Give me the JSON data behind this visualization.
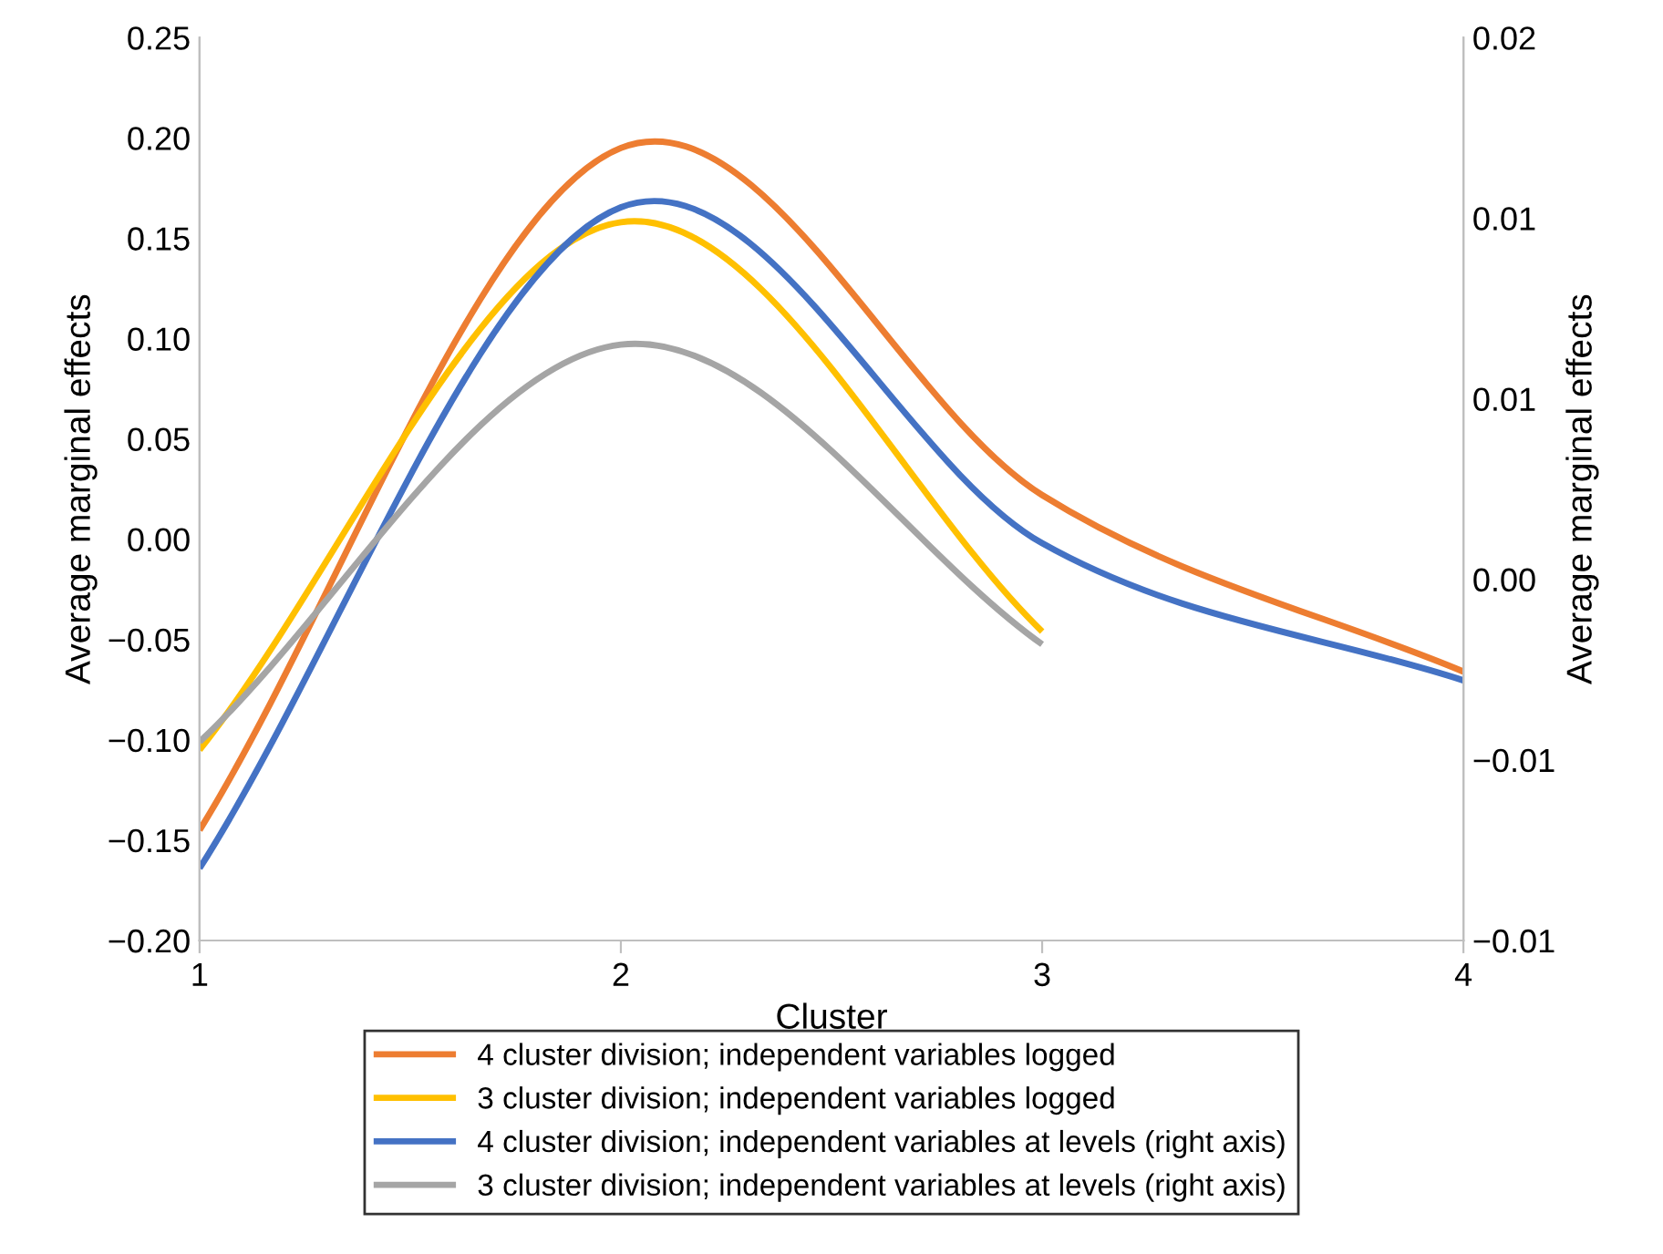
{
  "chart_data": {
    "type": "line",
    "xlabel": "Cluster",
    "ylabel": "Average marginal effects",
    "y2label": "Average marginal effects",
    "x": [
      1,
      2,
      3,
      4
    ],
    "xlim": [
      1,
      4
    ],
    "xticks": [
      1,
      2,
      3,
      4
    ],
    "ylim": [
      -0.2,
      0.25
    ],
    "yticks": [
      {
        "value": -0.2,
        "label": "−0.20"
      },
      {
        "value": -0.15,
        "label": "−0.15"
      },
      {
        "value": -0.1,
        "label": "−0.10"
      },
      {
        "value": -0.05,
        "label": "−0.05"
      },
      {
        "value": 0,
        "label": "0.00"
      },
      {
        "value": 0.05,
        "label": "0.05"
      },
      {
        "value": 0.1,
        "label": "0.10"
      },
      {
        "value": 0.15,
        "label": "0.15"
      },
      {
        "value": 0.2,
        "label": "0.20"
      },
      {
        "value": 0.25,
        "label": "0.25"
      }
    ],
    "y2lim": [
      -0.01,
      0.015
    ],
    "y2ticks": [
      {
        "value": -0.01,
        "label": "−0.01"
      },
      {
        "value": -0.005,
        "label": "−0.01"
      },
      {
        "value": 0,
        "label": "0.00"
      },
      {
        "value": 0.005,
        "label": "0.01"
      },
      {
        "value": 0.01,
        "label": "0.01"
      },
      {
        "value": 0.015,
        "label": "0.02"
      }
    ],
    "grid": false,
    "legend": "bottom",
    "marker": "none",
    "line_style": "solid",
    "series": [
      {
        "name": "4 cluster division; independent variables logged",
        "color": "#ed7d31",
        "values": [
          -0.145,
          0.195,
          0.022,
          -0.066
        ]
      },
      {
        "name": "3 cluster division; independent variables logged",
        "color": "#ffc000",
        "x": [
          1,
          2,
          3
        ],
        "values": [
          -0.105,
          0.158,
          -0.046
        ]
      },
      {
        "name": "4 cluster division; independent variables at levels (right axis)",
        "color": "#4472c4",
        "axis": "y2",
        "values": [
          -0.008,
          0.0103,
          0.001,
          -0.0028
        ]
      },
      {
        "name": "3 cluster division; independent variables at levels (right axis)",
        "color": "#a5a5a5",
        "axis": "y2",
        "x": [
          1,
          2,
          3
        ],
        "values": [
          -0.0045,
          0.0065,
          -0.0018
        ]
      }
    ]
  }
}
